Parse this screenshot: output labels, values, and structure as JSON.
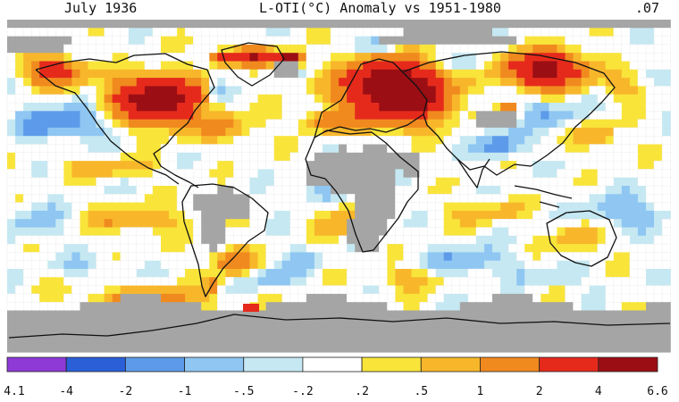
{
  "header": {
    "left": "July 1936",
    "center": "L-OTI(°C) Anomaly vs 1951-1980",
    "right": ".07"
  },
  "legend": {
    "ticks": [
      "4.1",
      "-4",
      "-2",
      "-1",
      "-.5",
      "-.2",
      ".2",
      ".5",
      "1",
      "2",
      "4",
      "6.6"
    ],
    "colors": [
      "#8e3ad6",
      "#2a5fd8",
      "#5d9bea",
      "#8fc6f2",
      "#c5e8f2",
      "#ffffff",
      "#f9e43a",
      "#f8b72b",
      "#f08a1e",
      "#e52a1c",
      "#9b0e14"
    ]
  },
  "map": {
    "no_data_color": "#a5a5a5",
    "ocean_base_color": "#ffffff"
  }
}
